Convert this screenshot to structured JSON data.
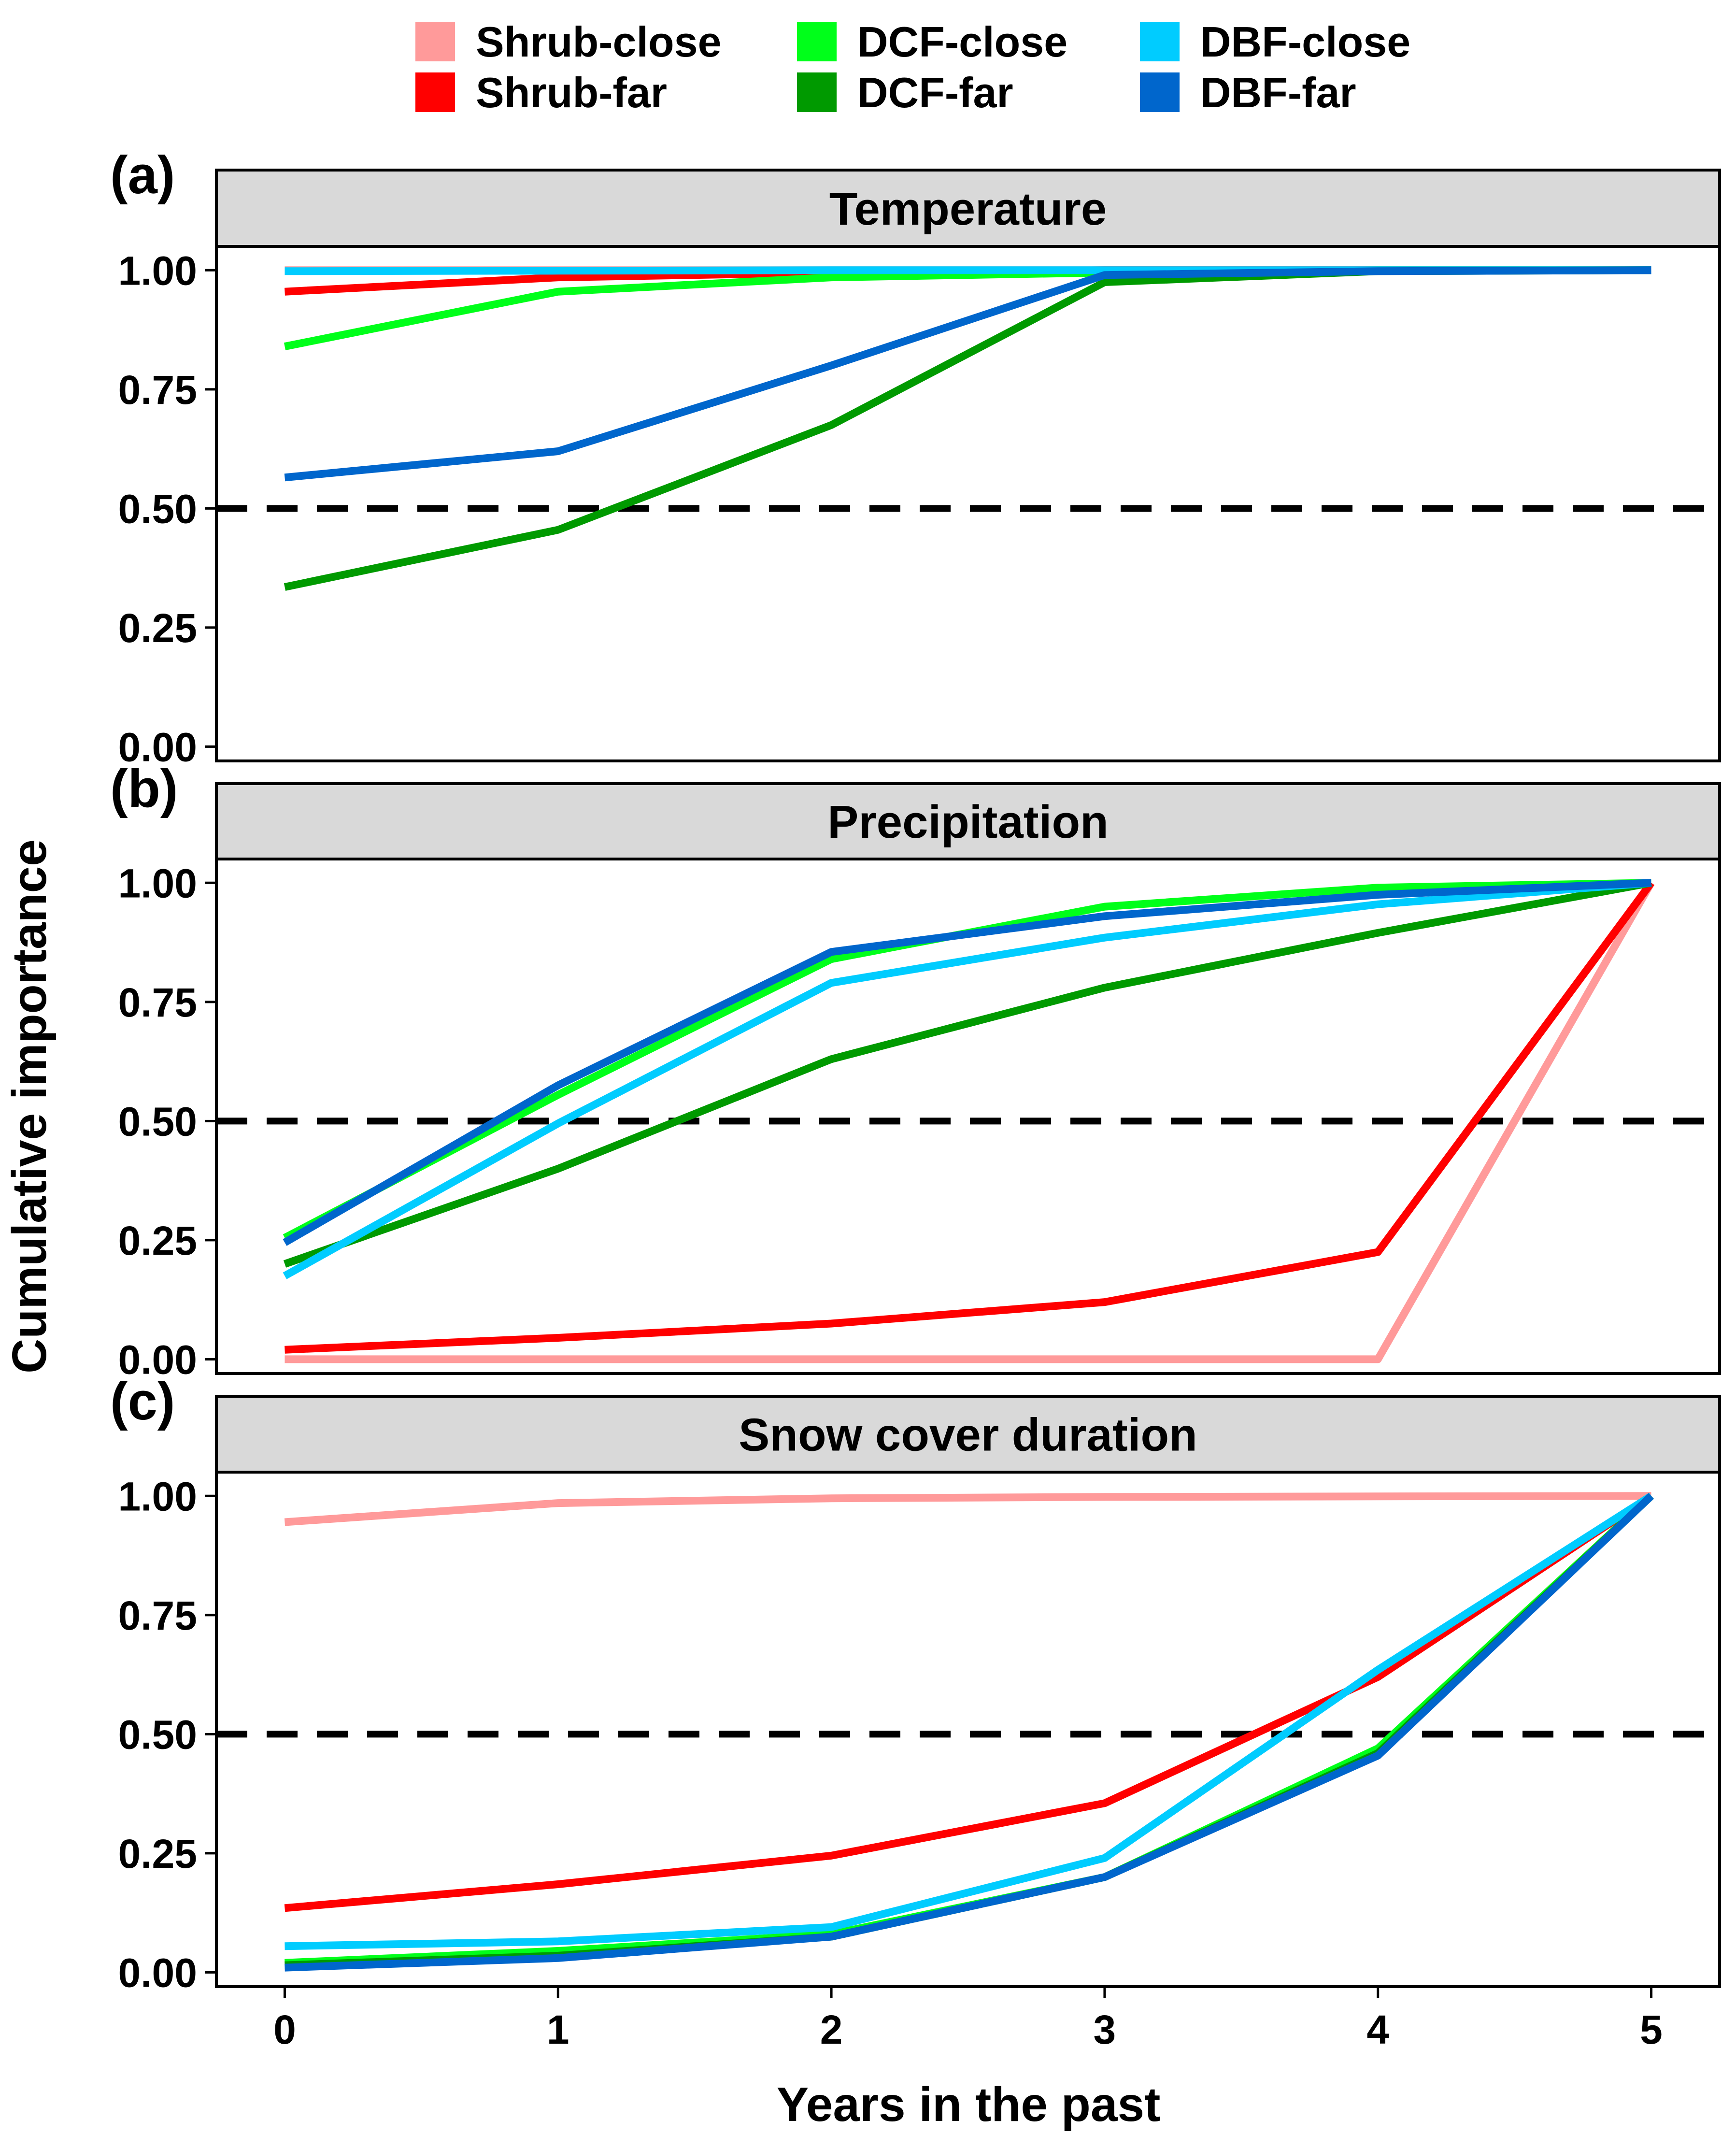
{
  "legend": [
    {
      "label": "Shrub-close",
      "color": "#FF9A9A"
    },
    {
      "label": "Shrub-far",
      "color": "#FF0000"
    },
    {
      "label": "DCF-close",
      "color": "#00FF1A"
    },
    {
      "label": "DCF-far",
      "color": "#009A00"
    },
    {
      "label": "DBF-close",
      "color": "#00CCFF"
    },
    {
      "label": "DBF-far",
      "color": "#0066CC"
    }
  ],
  "xlabel": "Years in the past",
  "ylabel": "Cumulative importance",
  "chart_data": [
    {
      "type": "line",
      "panel_label": "(a)",
      "title": "Temperature",
      "x": [
        0,
        1,
        2,
        3,
        4,
        5
      ],
      "xlim": [
        -0.25,
        5.25
      ],
      "ylim": [
        -0.03,
        1.05
      ],
      "xticks": [
        "0",
        "1",
        "2",
        "3",
        "4",
        "5"
      ],
      "yticks": [
        "0.00",
        "0.25",
        "0.50",
        "0.75",
        "1.00"
      ],
      "reference_line": 0.5,
      "series": [
        {
          "name": "Shrub-close",
          "color": "#FF9A9A",
          "values": [
            1.0,
            1.0,
            1.0,
            1.0,
            1.0,
            1.0
          ]
        },
        {
          "name": "Shrub-far",
          "color": "#FF0000",
          "values": [
            0.955,
            0.985,
            0.995,
            1.0,
            1.0,
            1.0
          ]
        },
        {
          "name": "DCF-close",
          "color": "#00FF1A",
          "values": [
            0.84,
            0.955,
            0.985,
            0.995,
            1.0,
            1.0
          ]
        },
        {
          "name": "DCF-far",
          "color": "#009A00",
          "values": [
            0.335,
            0.455,
            0.675,
            0.975,
            0.998,
            1.0
          ]
        },
        {
          "name": "DBF-close",
          "color": "#00CCFF",
          "values": [
            0.998,
            0.999,
            1.0,
            1.0,
            1.0,
            1.0
          ]
        },
        {
          "name": "DBF-far",
          "color": "#0066CC",
          "values": [
            0.565,
            0.62,
            0.8,
            0.99,
            0.998,
            1.0
          ]
        }
      ]
    },
    {
      "type": "line",
      "panel_label": "(b)",
      "title": "Precipitation",
      "x": [
        0,
        1,
        2,
        3,
        4,
        5
      ],
      "xlim": [
        -0.25,
        5.25
      ],
      "ylim": [
        -0.03,
        1.05
      ],
      "xticks": [
        "0",
        "1",
        "2",
        "3",
        "4",
        "5"
      ],
      "yticks": [
        "0.00",
        "0.25",
        "0.50",
        "0.75",
        "1.00"
      ],
      "reference_line": 0.5,
      "series": [
        {
          "name": "Shrub-close",
          "color": "#FF9A9A",
          "values": [
            0.0,
            0.0,
            0.0,
            0.0,
            0.0,
            1.0
          ]
        },
        {
          "name": "Shrub-far",
          "color": "#FF0000",
          "values": [
            0.02,
            0.045,
            0.075,
            0.12,
            0.225,
            1.0
          ]
        },
        {
          "name": "DCF-close",
          "color": "#00FF1A",
          "values": [
            0.255,
            0.555,
            0.84,
            0.95,
            0.99,
            1.0
          ]
        },
        {
          "name": "DCF-far",
          "color": "#009A00",
          "values": [
            0.2,
            0.4,
            0.63,
            0.78,
            0.895,
            1.0
          ]
        },
        {
          "name": "DBF-close",
          "color": "#00CCFF",
          "values": [
            0.175,
            0.495,
            0.79,
            0.885,
            0.955,
            1.0
          ]
        },
        {
          "name": "DBF-far",
          "color": "#0066CC",
          "values": [
            0.245,
            0.575,
            0.855,
            0.93,
            0.975,
            1.0
          ]
        }
      ]
    },
    {
      "type": "line",
      "panel_label": "(c)",
      "title": "Snow cover duration",
      "x": [
        0,
        1,
        2,
        3,
        4,
        5
      ],
      "xlim": [
        -0.25,
        5.25
      ],
      "ylim": [
        -0.03,
        1.05
      ],
      "xticks": [
        "0",
        "1",
        "2",
        "3",
        "4",
        "5"
      ],
      "yticks": [
        "0.00",
        "0.25",
        "0.50",
        "0.75",
        "1.00"
      ],
      "reference_line": 0.5,
      "series": [
        {
          "name": "Shrub-close",
          "color": "#FF9A9A",
          "values": [
            0.945,
            0.985,
            0.995,
            0.998,
            0.999,
            1.0
          ]
        },
        {
          "name": "Shrub-far",
          "color": "#FF0000",
          "values": [
            0.135,
            0.185,
            0.245,
            0.355,
            0.62,
            1.0
          ]
        },
        {
          "name": "DCF-close",
          "color": "#00FF1A",
          "values": [
            0.02,
            0.045,
            0.08,
            0.2,
            0.47,
            1.0
          ]
        },
        {
          "name": "DCF-far",
          "color": "#009A00",
          "values": [
            0.015,
            0.035,
            0.075,
            0.2,
            0.46,
            1.0
          ]
        },
        {
          "name": "DBF-close",
          "color": "#00CCFF",
          "values": [
            0.055,
            0.065,
            0.095,
            0.24,
            0.635,
            1.0
          ]
        },
        {
          "name": "DBF-far",
          "color": "#0066CC",
          "values": [
            0.01,
            0.03,
            0.075,
            0.2,
            0.455,
            1.0
          ]
        }
      ]
    }
  ]
}
